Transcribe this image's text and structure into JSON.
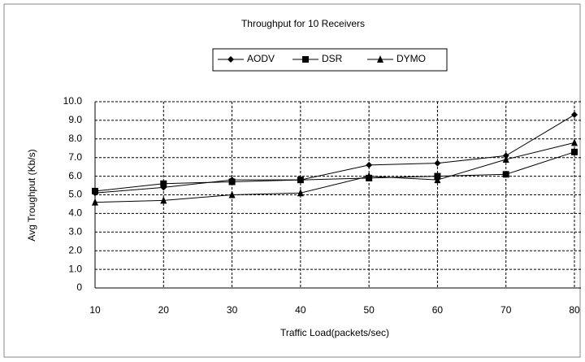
{
  "chart_data": {
    "type": "line",
    "title": "Throughput for 10 Receivers",
    "x_label": "Traffic Load(packets/sec)",
    "y_label": "Avg Troughput (Kb/s)",
    "x": [
      10,
      20,
      30,
      40,
      50,
      60,
      70,
      80
    ],
    "series": [
      {
        "name": "AODV",
        "color": "#000000",
        "marker": "diamond",
        "values": [
          5.1,
          5.4,
          5.8,
          5.8,
          6.6,
          6.7,
          7.1,
          9.3
        ]
      },
      {
        "name": "DSR",
        "color": "#000000",
        "marker": "square",
        "values": [
          5.2,
          5.6,
          5.7,
          5.8,
          5.9,
          6.0,
          6.1,
          7.3
        ]
      },
      {
        "name": "DYMO",
        "color": "#000000",
        "marker": "triangle",
        "values": [
          4.6,
          4.7,
          5.0,
          5.1,
          6.0,
          5.8,
          6.9,
          7.8
        ]
      }
    ],
    "xlim": [
      10,
      80
    ],
    "xticks": [
      10,
      20,
      30,
      40,
      50,
      60,
      70,
      80
    ],
    "ylim": [
      0,
      10
    ],
    "yticks": [
      0,
      {
        "value": 1,
        "label": "1.0"
      },
      {
        "value": 2,
        "label": "2.0"
      },
      {
        "value": 3,
        "label": "3.0"
      },
      {
        "value": 4,
        "label": "4.0"
      },
      {
        "value": 5,
        "label": "5.0"
      },
      {
        "value": 6,
        "label": "6.0"
      },
      {
        "value": 7,
        "label": "7.0"
      },
      {
        "value": 8,
        "label": "8.0"
      },
      {
        "value": 9,
        "label": "9.0"
      },
      {
        "value": 10,
        "label": "10.0"
      }
    ],
    "grid": true,
    "legend": "top"
  }
}
